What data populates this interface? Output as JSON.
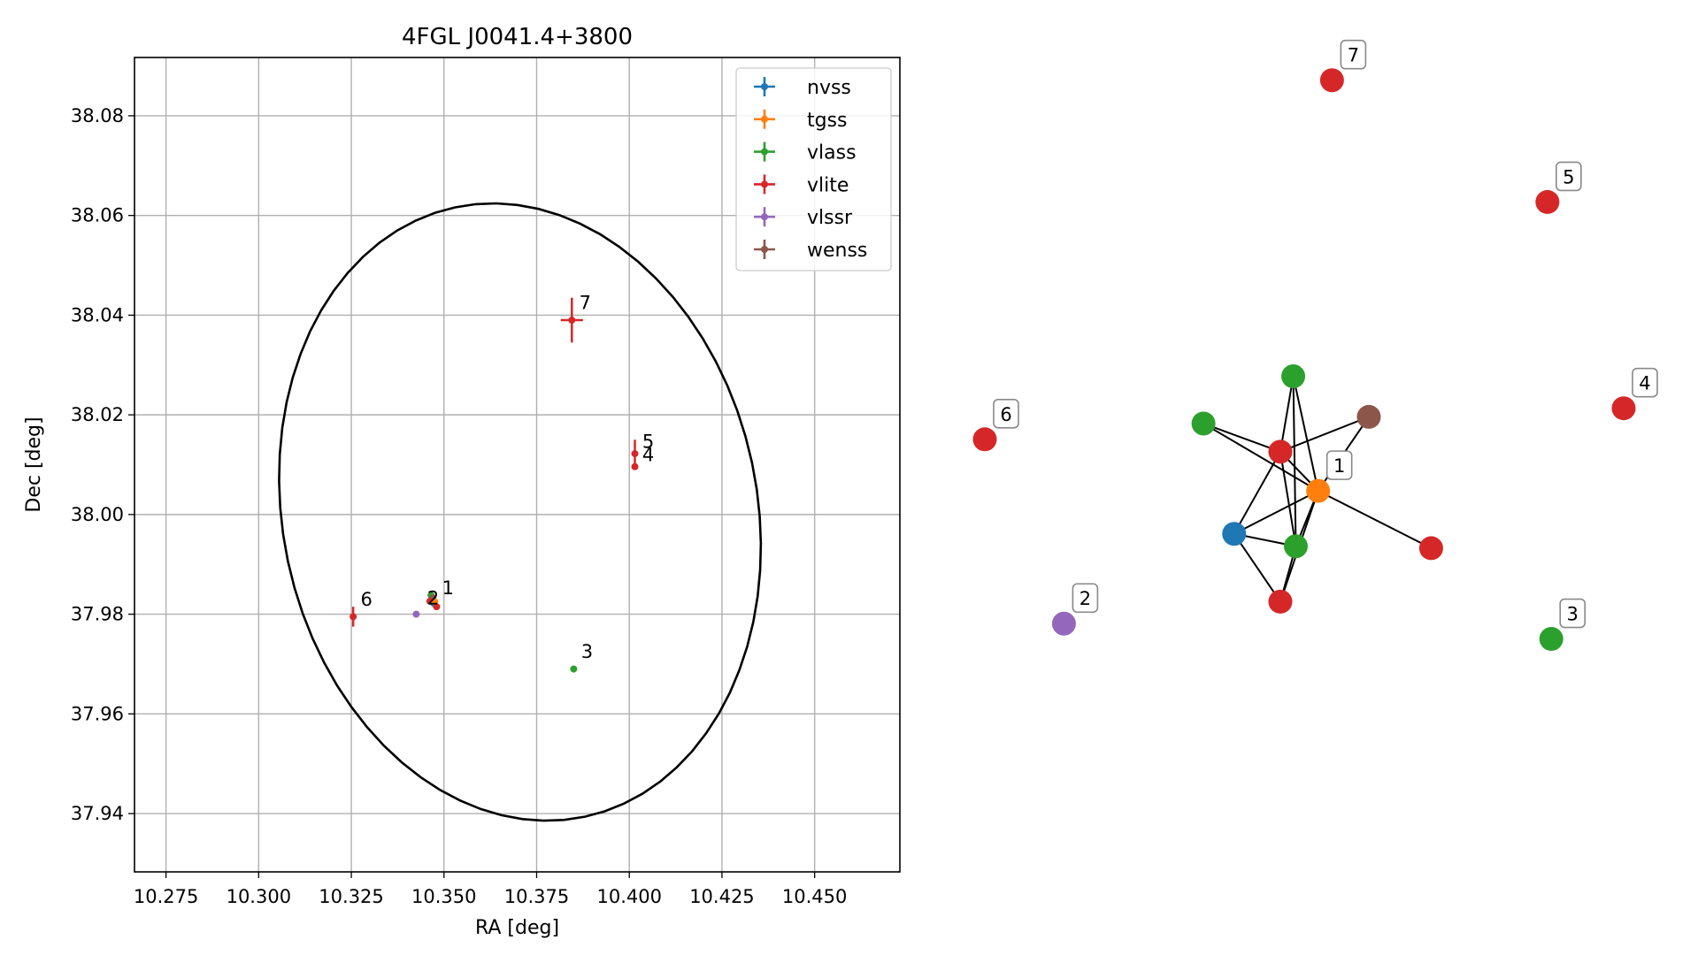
{
  "chart_data": [
    {
      "type": "scatter",
      "title": "4FGL J0041.4+3800",
      "xlabel": "RA [deg]",
      "ylabel": "Dec [deg]",
      "xlim": [
        10.2665,
        10.473
      ],
      "ylim": [
        37.9283,
        38.0917
      ],
      "xticks": [
        "10.275",
        "10.300",
        "10.325",
        "10.350",
        "10.375",
        "10.400",
        "10.425",
        "10.450"
      ],
      "yticks": [
        "37.94",
        "37.96",
        "37.98",
        "38.00",
        "38.02",
        "38.04",
        "38.06",
        "38.08"
      ],
      "grid": true,
      "legend": {
        "placement": "top-right",
        "entries": [
          {
            "name": "nvss",
            "color": "#1f77b4"
          },
          {
            "name": "tgss",
            "color": "#ff7f0e"
          },
          {
            "name": "vlass",
            "color": "#2ca02c"
          },
          {
            "name": "vlite",
            "color": "#d62728"
          },
          {
            "name": "vlssr",
            "color": "#9467bd"
          },
          {
            "name": "wenss",
            "color": "#8c564b"
          }
        ]
      },
      "ellipse": {
        "center": [
          10.3705,
          38.0005
        ],
        "semi_ra": 0.064,
        "semi_dec": 0.0625,
        "color": "#000000"
      },
      "points": [
        {
          "survey": "vlass",
          "ra": 10.3465,
          "dec": 37.9838,
          "err_ra": 0.0,
          "err_dec": 0.0,
          "color": "#2ca02c"
        },
        {
          "survey": "wenss",
          "ra": 10.347,
          "dec": 37.9833,
          "err_ra": 0.0,
          "err_dec": 0.0,
          "color": "#8c564b"
        },
        {
          "survey": "vlite",
          "ra": 10.3462,
          "dec": 37.9826,
          "err_ra": 0.0,
          "err_dec": 0.0,
          "color": "#d62728"
        },
        {
          "survey": "nvss",
          "ra": 10.3472,
          "dec": 37.9822,
          "err_ra": 0.0,
          "err_dec": 0.0,
          "color": "#1f77b4"
        },
        {
          "survey": "tgss",
          "ra": 10.3475,
          "dec": 37.9825,
          "err_ra": 0.0,
          "err_dec": 0.0,
          "color": "#ff7f0e"
        },
        {
          "survey": "vlite",
          "ra": 10.348,
          "dec": 37.9815,
          "err_ra": 0.0,
          "err_dec": 0.0,
          "color": "#d62728"
        },
        {
          "survey": "vlssr",
          "ra": 10.3425,
          "dec": 37.98,
          "err_ra": 0.0,
          "err_dec": 0.0,
          "color": "#9467bd"
        },
        {
          "survey": "vlass",
          "ra": 10.385,
          "dec": 37.969,
          "err_ra": 0.0,
          "err_dec": 0.0,
          "color": "#2ca02c"
        },
        {
          "survey": "vlite",
          "ra": 10.4015,
          "dec": 38.0096,
          "err_ra": 0.0,
          "err_dec": 0.0,
          "color": "#d62728"
        },
        {
          "survey": "vlite",
          "ra": 10.4015,
          "dec": 38.0122,
          "err_ra": 0.0,
          "err_dec": 0.0028,
          "color": "#d62728"
        },
        {
          "survey": "vlite",
          "ra": 10.3255,
          "dec": 37.9795,
          "err_ra": 0.0,
          "err_dec": 0.002,
          "color": "#d62728"
        },
        {
          "survey": "vlite",
          "ra": 10.3845,
          "dec": 38.039,
          "err_ra": 0.003,
          "err_dec": 0.0045,
          "color": "#d62728"
        }
      ],
      "annotations": [
        {
          "text": "1",
          "ra": 10.3495,
          "dec": 37.984
        },
        {
          "text": "2",
          "ra": 10.3455,
          "dec": 37.982
        },
        {
          "text": "3",
          "ra": 10.387,
          "dec": 37.9712
        },
        {
          "text": "4",
          "ra": 10.4035,
          "dec": 38.0107
        },
        {
          "text": "5",
          "ra": 10.4035,
          "dec": 38.0134
        },
        {
          "text": "6",
          "ra": 10.3275,
          "dec": 37.9817
        },
        {
          "text": "7",
          "ra": 10.3865,
          "dec": 38.0412
        }
      ]
    },
    {
      "type": "network",
      "nodes": [
        {
          "id": "n1",
          "color": "#d62728",
          "label": "7",
          "x": 0.5375,
          "y": 0.084
        },
        {
          "id": "n2",
          "color": "#d62728",
          "label": "5",
          "x": 0.871,
          "y": 0.2115
        },
        {
          "id": "n3",
          "color": "#d62728",
          "label": "4",
          "x": 0.989,
          "y": 0.4275
        },
        {
          "id": "n4",
          "color": "#d62728",
          "label": "6",
          "x": 0.0,
          "y": 0.46
        },
        {
          "id": "n5",
          "color": "#2ca02c",
          "label": "",
          "x": 0.4775,
          "y": 0.394
        },
        {
          "id": "n6",
          "color": "#2ca02c",
          "label": "",
          "x": 0.3385,
          "y": 0.4435
        },
        {
          "id": "n7",
          "color": "#8c564b",
          "label": "",
          "x": 0.5945,
          "y": 0.4365
        },
        {
          "id": "n8",
          "color": "#d62728",
          "label": "",
          "x": 0.4575,
          "y": 0.473
        },
        {
          "id": "n9",
          "color": "#ff7f0e",
          "label": "1",
          "x": 0.516,
          "y": 0.514
        },
        {
          "id": "n10",
          "color": "#1f77b4",
          "label": "",
          "x": 0.386,
          "y": 0.559
        },
        {
          "id": "n11",
          "color": "#2ca02c",
          "label": "",
          "x": 0.4815,
          "y": 0.572
        },
        {
          "id": "n12",
          "color": "#d62728",
          "label": "",
          "x": 0.691,
          "y": 0.574
        },
        {
          "id": "n13",
          "color": "#d62728",
          "label": "",
          "x": 0.4575,
          "y": 0.63
        },
        {
          "id": "n14",
          "color": "#9467bd",
          "label": "2",
          "x": 0.1225,
          "y": 0.653
        },
        {
          "id": "n15",
          "color": "#2ca02c",
          "label": "3",
          "x": 0.877,
          "y": 0.669
        }
      ],
      "edges": [
        [
          "n5",
          "n8"
        ],
        [
          "n5",
          "n9"
        ],
        [
          "n5",
          "n11"
        ],
        [
          "n6",
          "n8"
        ],
        [
          "n6",
          "n9"
        ],
        [
          "n7",
          "n8"
        ],
        [
          "n7",
          "n9"
        ],
        [
          "n8",
          "n9"
        ],
        [
          "n8",
          "n10"
        ],
        [
          "n8",
          "n11"
        ],
        [
          "n9",
          "n10"
        ],
        [
          "n9",
          "n11"
        ],
        [
          "n9",
          "n12"
        ],
        [
          "n9",
          "n13"
        ],
        [
          "n10",
          "n11"
        ],
        [
          "n10",
          "n13"
        ],
        [
          "n11",
          "n13"
        ]
      ]
    }
  ]
}
